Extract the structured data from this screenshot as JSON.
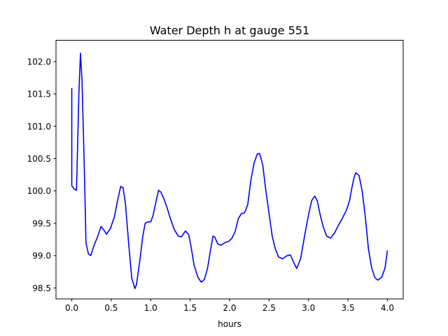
{
  "chart_data": {
    "type": "line",
    "title": "Water Depth h at gauge 551",
    "xlabel": "hours",
    "ylabel": "",
    "xlim": [
      -0.2,
      4.2
    ],
    "ylim": [
      98.33,
      102.33
    ],
    "grid": false,
    "line_color": "#0000ff",
    "x_ticks": [
      0.0,
      0.5,
      1.0,
      1.5,
      2.0,
      2.5,
      3.0,
      3.5,
      4.0
    ],
    "x_tick_labels": [
      "0.0",
      "0.5",
      "1.0",
      "1.5",
      "2.0",
      "2.5",
      "3.0",
      "3.5",
      "4.0"
    ],
    "y_ticks": [
      98.5,
      99.0,
      99.5,
      100.0,
      100.5,
      101.0,
      101.5,
      102.0
    ],
    "y_tick_labels": [
      "98.5",
      "99.0",
      "99.5",
      "100.0",
      "100.5",
      "101.0",
      "101.5",
      "102.0"
    ],
    "series": [
      {
        "x": [
          0.0,
          0.0,
          0.03,
          0.06,
          0.09,
          0.11,
          0.13,
          0.16,
          0.18,
          0.21,
          0.24,
          0.28,
          0.33,
          0.37,
          0.41,
          0.44,
          0.49,
          0.54,
          0.58,
          0.62,
          0.65,
          0.68,
          0.72,
          0.76,
          0.8,
          0.82,
          0.86,
          0.9,
          0.93,
          0.96,
          1.0,
          1.03,
          1.07,
          1.1,
          1.13,
          1.17,
          1.21,
          1.25,
          1.3,
          1.35,
          1.39,
          1.44,
          1.48,
          1.51,
          1.55,
          1.6,
          1.64,
          1.68,
          1.72,
          1.76,
          1.79,
          1.81,
          1.85,
          1.89,
          1.94,
          1.99,
          2.03,
          2.07,
          2.11,
          2.15,
          2.19,
          2.23,
          2.27,
          2.31,
          2.35,
          2.38,
          2.42,
          2.46,
          2.5,
          2.54,
          2.58,
          2.62,
          2.67,
          2.73,
          2.77,
          2.81,
          2.85,
          2.9,
          2.95,
          3.0,
          3.04,
          3.08,
          3.11,
          3.15,
          3.19,
          3.23,
          3.28,
          3.33,
          3.38,
          3.43,
          3.48,
          3.52,
          3.55,
          3.58,
          3.6,
          3.64,
          3.68,
          3.72,
          3.76,
          3.8,
          3.84,
          3.88,
          3.93,
          3.97,
          4.0
        ],
        "y": [
          101.59,
          100.08,
          100.03,
          100.01,
          101.5,
          102.13,
          101.7,
          100.3,
          99.2,
          99.03,
          99.0,
          99.15,
          99.3,
          99.45,
          99.39,
          99.33,
          99.42,
          99.6,
          99.85,
          100.07,
          100.05,
          99.8,
          99.2,
          98.65,
          98.49,
          98.55,
          98.9,
          99.3,
          99.5,
          99.52,
          99.52,
          99.62,
          99.85,
          100.01,
          99.98,
          99.87,
          99.73,
          99.57,
          99.4,
          99.3,
          99.29,
          99.38,
          99.33,
          99.15,
          98.85,
          98.66,
          98.59,
          98.63,
          98.8,
          99.1,
          99.3,
          99.29,
          99.18,
          99.16,
          99.2,
          99.22,
          99.27,
          99.37,
          99.57,
          99.65,
          99.66,
          99.79,
          100.17,
          100.43,
          100.57,
          100.58,
          100.4,
          100.0,
          99.65,
          99.3,
          99.1,
          98.98,
          98.95,
          99.0,
          99.01,
          98.9,
          98.8,
          98.95,
          99.3,
          99.63,
          99.85,
          99.92,
          99.85,
          99.62,
          99.43,
          99.3,
          99.27,
          99.35,
          99.47,
          99.58,
          99.7,
          99.85,
          100.05,
          100.22,
          100.28,
          100.24,
          100.0,
          99.6,
          99.1,
          98.81,
          98.66,
          98.62,
          98.67,
          98.81,
          99.08
        ]
      }
    ]
  }
}
